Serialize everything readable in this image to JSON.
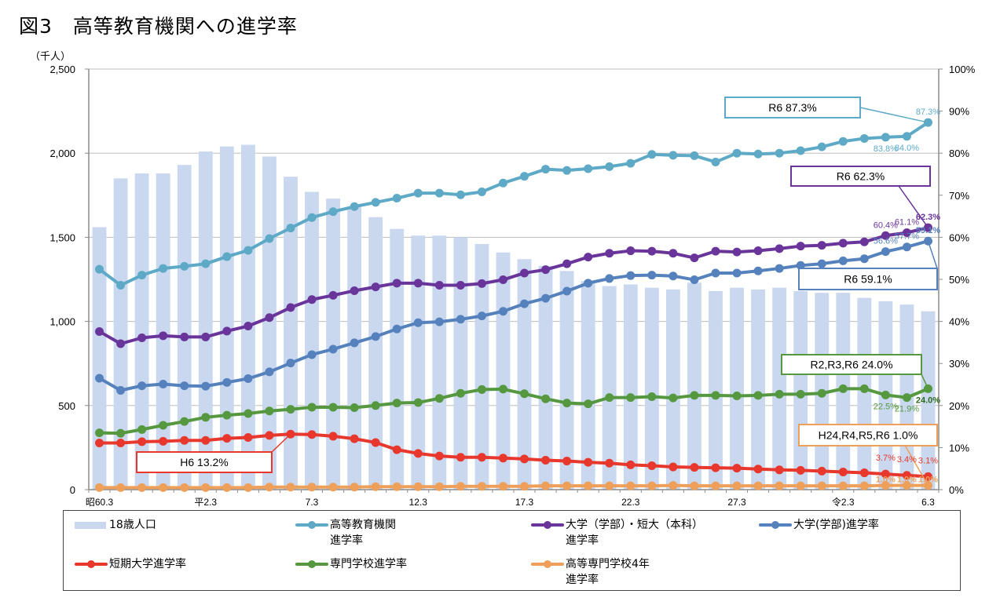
{
  "title": "図3　高等教育機関への進学率",
  "chart_data": {
    "type": "bar+line",
    "title": "図3　高等教育機関への進学率",
    "left_axis": {
      "unit_label": "（千人）",
      "range": [
        0,
        2500
      ],
      "ticks": [
        "0",
        "500",
        "1,000",
        "1,500",
        "2,000",
        "2,500"
      ],
      "tick_values": [
        0,
        500,
        1000,
        1500,
        2000,
        2500
      ]
    },
    "right_axis": {
      "range": [
        0,
        100
      ],
      "ticks": [
        "0%",
        "10%",
        "20%",
        "30%",
        "40%",
        "50%",
        "60%",
        "70%",
        "80%",
        "90%",
        "100%"
      ],
      "tick_values": [
        0,
        10,
        20,
        30,
        40,
        50,
        60,
        70,
        80,
        90,
        100
      ]
    },
    "grid": "horizontal",
    "x_tick_labels": [
      {
        "index": 0,
        "label": "昭60.3"
      },
      {
        "index": 5,
        "label": "平2.3"
      },
      {
        "index": 10,
        "label": "7.3"
      },
      {
        "index": 15,
        "label": "12.3"
      },
      {
        "index": 20,
        "label": "17.3"
      },
      {
        "index": 25,
        "label": "22.3"
      },
      {
        "index": 30,
        "label": "27.3"
      },
      {
        "index": 35,
        "label": "令2.3"
      },
      {
        "index": 39,
        "label": "6.3"
      }
    ],
    "bars": {
      "name": "18歳人口",
      "color": "#c9d8ee",
      "axis": "left",
      "values": [
        1560,
        1850,
        1880,
        1880,
        1930,
        2010,
        2040,
        2050,
        1980,
        1860,
        1770,
        1730,
        1680,
        1620,
        1550,
        1510,
        1510,
        1500,
        1460,
        1410,
        1370,
        1330,
        1300,
        1240,
        1210,
        1220,
        1200,
        1190,
        1230,
        1180,
        1200,
        1190,
        1200,
        1180,
        1170,
        1170,
        1140,
        1120,
        1100,
        1060
      ]
    },
    "series": [
      {
        "name": "高等教育機関進学率",
        "legend": "高等教育機関\n進学率",
        "color": "#5eaac6",
        "axis": "right",
        "values": [
          52.4,
          48.6,
          51.0,
          52.6,
          53.1,
          53.7,
          55.4,
          56.9,
          59.7,
          62.2,
          64.7,
          66.1,
          67.3,
          68.3,
          69.3,
          70.5,
          70.5,
          70.1,
          70.8,
          72.9,
          74.5,
          76.2,
          75.9,
          76.3,
          76.8,
          77.6,
          79.7,
          79.5,
          79.4,
          77.9,
          80.0,
          79.8,
          80.0,
          80.6,
          81.5,
          82.8,
          83.5,
          83.8,
          84.0,
          87.3
        ]
      },
      {
        "name": "大学(学部)・短大(本科)進学率",
        "legend": "大学（学部）・短大（本科）\n進学率",
        "color": "#6a359a",
        "axis": "right",
        "values": [
          37.6,
          34.7,
          36.1,
          36.6,
          36.3,
          36.3,
          37.7,
          38.9,
          40.9,
          43.3,
          45.2,
          46.2,
          47.3,
          48.2,
          49.1,
          49.1,
          48.6,
          48.6,
          49.0,
          49.9,
          51.5,
          52.3,
          53.7,
          55.3,
          56.2,
          56.8,
          56.7,
          56.2,
          55.1,
          56.7,
          56.5,
          56.8,
          57.3,
          57.9,
          58.1,
          58.6,
          58.9,
          60.4,
          61.1,
          62.3
        ]
      },
      {
        "name": "大学(学部)進学率",
        "legend": "大学(学部)進学率",
        "color": "#5581bc",
        "axis": "right",
        "values": [
          26.5,
          23.6,
          24.7,
          25.1,
          24.7,
          24.6,
          25.5,
          26.4,
          28.0,
          30.1,
          32.1,
          33.4,
          34.9,
          36.4,
          38.2,
          39.7,
          39.9,
          40.5,
          41.3,
          42.4,
          44.2,
          45.5,
          47.2,
          49.1,
          50.2,
          50.9,
          51.0,
          50.8,
          49.9,
          51.5,
          51.5,
          52.0,
          52.6,
          53.3,
          53.7,
          54.4,
          54.9,
          56.6,
          57.7,
          59.1
        ]
      },
      {
        "name": "短期大学進学率",
        "legend": "短期大学進学率",
        "color": "#e8372c",
        "axis": "right",
        "values": [
          11.1,
          11.1,
          11.4,
          11.5,
          11.7,
          11.7,
          12.2,
          12.4,
          12.9,
          13.2,
          13.1,
          12.7,
          12.1,
          11.2,
          9.5,
          8.6,
          8.0,
          7.7,
          7.7,
          7.5,
          7.3,
          7.0,
          6.8,
          6.5,
          6.3,
          5.9,
          5.7,
          5.4,
          5.3,
          5.2,
          5.1,
          4.9,
          4.7,
          4.6,
          4.4,
          4.2,
          4.0,
          3.7,
          3.4,
          3.1
        ]
      },
      {
        "name": "専門学校進学率",
        "legend": "専門学校進学率",
        "color": "#55983f",
        "axis": "right",
        "values": [
          13.5,
          13.4,
          14.3,
          15.3,
          16.2,
          17.2,
          17.7,
          18.1,
          18.7,
          19.1,
          19.6,
          19.6,
          19.5,
          20.0,
          20.6,
          20.7,
          21.7,
          22.9,
          23.8,
          23.9,
          22.8,
          21.6,
          20.6,
          20.4,
          21.9,
          21.9,
          22.1,
          21.8,
          22.4,
          22.4,
          22.3,
          22.4,
          22.7,
          22.7,
          22.9,
          24.0,
          24.0,
          22.5,
          21.9,
          24.0
        ]
      },
      {
        "name": "高等専門学校4年進学率",
        "legend": "高等専門学校4年\n進学率",
        "color": "#eea05a",
        "axis": "right",
        "values": [
          0.5,
          0.5,
          0.5,
          0.5,
          0.5,
          0.5,
          0.5,
          0.5,
          0.6,
          0.6,
          0.6,
          0.6,
          0.6,
          0.7,
          0.7,
          0.7,
          0.7,
          0.8,
          0.8,
          0.8,
          0.8,
          0.9,
          0.9,
          0.9,
          0.9,
          0.9,
          0.9,
          1.0,
          0.9,
          0.9,
          0.9,
          0.9,
          0.9,
          0.9,
          0.9,
          0.9,
          0.9,
          1.0,
          1.0,
          1.0
        ]
      }
    ],
    "data_labels": [
      {
        "series": 0,
        "index": 37,
        "text": "83.8%",
        "pos": "below"
      },
      {
        "series": 0,
        "index": 38,
        "text": "84.0%",
        "pos": "below"
      },
      {
        "series": 0,
        "index": 39,
        "text": "87.3%",
        "pos": "above"
      },
      {
        "series": 1,
        "index": 37,
        "text": "60.4%",
        "pos": "above"
      },
      {
        "series": 1,
        "index": 38,
        "text": "61.1%",
        "pos": "above"
      },
      {
        "series": 1,
        "index": 39,
        "text": "62.3%",
        "pos": "above",
        "bold": true
      },
      {
        "series": 2,
        "index": 37,
        "text": "56.6%",
        "pos": "above"
      },
      {
        "series": 2,
        "index": 38,
        "text": "57.7%",
        "pos": "above"
      },
      {
        "series": 2,
        "index": 39,
        "text": "59.1%",
        "pos": "above",
        "bold": true
      },
      {
        "series": 4,
        "index": 37,
        "text": "22.5%",
        "pos": "below"
      },
      {
        "series": 4,
        "index": 38,
        "text": "21.9%",
        "pos": "below"
      },
      {
        "series": 4,
        "index": 39,
        "text": "24.0%",
        "pos": "below",
        "bold": true,
        "color": "#2e6b1f"
      },
      {
        "series": 3,
        "index": 37,
        "text": "3.7%",
        "pos": "above2"
      },
      {
        "series": 3,
        "index": 38,
        "text": "3.4%",
        "pos": "above2"
      },
      {
        "series": 3,
        "index": 39,
        "text": "3.1%",
        "pos": "above2"
      },
      {
        "series": 5,
        "index": 37,
        "text": "1.0%",
        "pos": "above3",
        "bold": true
      },
      {
        "series": 5,
        "index": 38,
        "text": "1.0%",
        "pos": "above3",
        "bold": true
      },
      {
        "series": 5,
        "index": 39,
        "text": "1.0%",
        "pos": "above3",
        "bold": true
      }
    ],
    "callouts": [
      {
        "text": "R6   87.3%",
        "series": 0,
        "index": 39,
        "color": "#5eaac6"
      },
      {
        "text": "R6   62.3%",
        "series": 1,
        "index": 39,
        "color": "#6a359a"
      },
      {
        "text": "R6   59.1%",
        "series": 2,
        "index": 39,
        "color": "#5581bc"
      },
      {
        "text": "R2,R3,R6 24.0%",
        "series": 4,
        "index": 39,
        "color": "#55983f"
      },
      {
        "text": "H24,R4,R5,R6 1.0%",
        "series": 5,
        "index": 39,
        "color": "#eea05a"
      },
      {
        "text": "H6 13.2%",
        "series": 3,
        "index": 9,
        "color": "#e8372c"
      }
    ],
    "legend_placement": "bottom"
  }
}
